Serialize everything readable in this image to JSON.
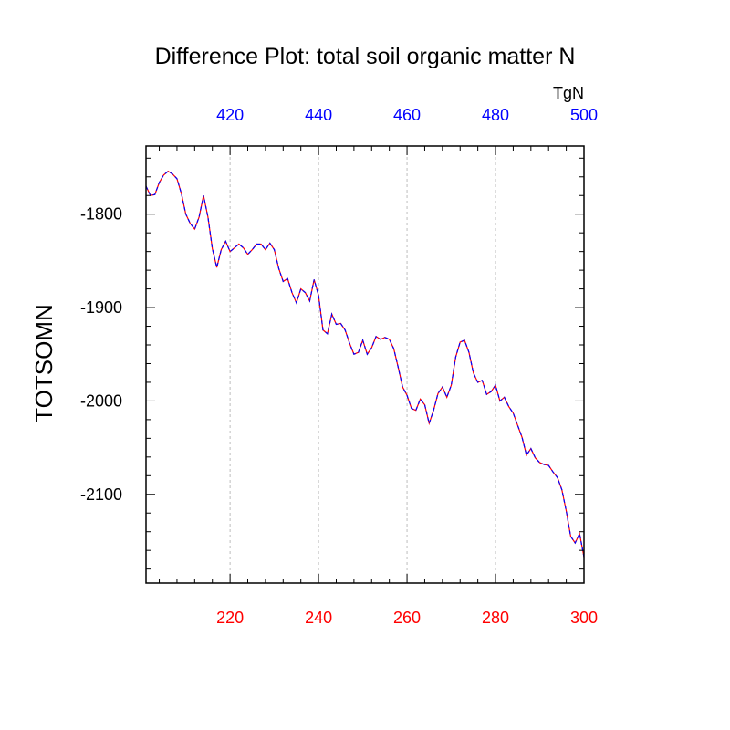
{
  "chart_data": {
    "type": "line",
    "title": "Difference Plot: total soil organic matter N",
    "ylabel": "TOTSOMN",
    "xlabel": "",
    "top_axis_unit": "TgN",
    "bottom_axis": {
      "range": [
        201,
        300
      ],
      "ticks": [
        220,
        240,
        260,
        280,
        300
      ],
      "color": "#ff0000"
    },
    "top_axis": {
      "range": [
        401,
        500
      ],
      "ticks": [
        420,
        440,
        460,
        480,
        500
      ],
      "color": "#0000ff"
    },
    "ylim": [
      -2195,
      -1727
    ],
    "yticks": [
      -1800,
      -1900,
      -2000,
      -2100
    ],
    "grid": "vertical dashed",
    "series": [
      {
        "color": "#ff0000",
        "style": "solid",
        "x": [
          201,
          202,
          203,
          204,
          205,
          206,
          207,
          208,
          209,
          210,
          211,
          212,
          213,
          214,
          215,
          216,
          217,
          218,
          219,
          220,
          221,
          222,
          223,
          224,
          225,
          226,
          227,
          228,
          229,
          230,
          231,
          232,
          233,
          234,
          235,
          236,
          237,
          238,
          239,
          240,
          241,
          242,
          243,
          244,
          245,
          246,
          247,
          248,
          249,
          250,
          251,
          252,
          253,
          254,
          255,
          256,
          257,
          258,
          259,
          260,
          261,
          262,
          263,
          264,
          265,
          266,
          267,
          268,
          269,
          270,
          271,
          272,
          273,
          274,
          275,
          276,
          277,
          278,
          279,
          280,
          281,
          282,
          283,
          284,
          285,
          286,
          287,
          288,
          289,
          290,
          291,
          292,
          293,
          294,
          295,
          296,
          297,
          298,
          299,
          300
        ],
        "values": [
          -1770,
          -1780,
          -1779,
          -1766,
          -1758,
          -1754,
          -1757,
          -1762,
          -1778,
          -1800,
          -1810,
          -1816,
          -1803,
          -1780,
          -1803,
          -1837,
          -1857,
          -1838,
          -1829,
          -1840,
          -1836,
          -1832,
          -1836,
          -1843,
          -1838,
          -1832,
          -1832,
          -1838,
          -1831,
          -1838,
          -1858,
          -1872,
          -1869,
          -1884,
          -1895,
          -1880,
          -1884,
          -1893,
          -1870,
          -1887,
          -1924,
          -1928,
          -1907,
          -1918,
          -1917,
          -1924,
          -1938,
          -1950,
          -1948,
          -1935,
          -1950,
          -1943,
          -1931,
          -1934,
          -1932,
          -1934,
          -1944,
          -1964,
          -1985,
          -1994,
          -2008,
          -2010,
          -1998,
          -2004,
          -2024,
          -2010,
          -1992,
          -1985,
          -1996,
          -1983,
          -1953,
          -1937,
          -1935,
          -1948,
          -1970,
          -1980,
          -1978,
          -1993,
          -1990,
          -1983,
          -2000,
          -1996,
          -2006,
          -2013,
          -2026,
          -2039,
          -2058,
          -2051,
          -2061,
          -2066,
          -2068,
          -2069,
          -2076,
          -2082,
          -2095,
          -2118,
          -2145,
          -2152,
          -2142,
          -2167
        ]
      },
      {
        "color": "#0000ff",
        "style": "dashed",
        "x": [
          201,
          202,
          203,
          204,
          205,
          206,
          207,
          208,
          209,
          210,
          211,
          212,
          213,
          214,
          215,
          216,
          217,
          218,
          219,
          220,
          221,
          222,
          223,
          224,
          225,
          226,
          227,
          228,
          229,
          230,
          231,
          232,
          233,
          234,
          235,
          236,
          237,
          238,
          239,
          240,
          241,
          242,
          243,
          244,
          245,
          246,
          247,
          248,
          249,
          250,
          251,
          252,
          253,
          254,
          255,
          256,
          257,
          258,
          259,
          260,
          261,
          262,
          263,
          264,
          265,
          266,
          267,
          268,
          269,
          270,
          271,
          272,
          273,
          274,
          275,
          276,
          277,
          278,
          279,
          280,
          281,
          282,
          283,
          284,
          285,
          286,
          287,
          288,
          289,
          290,
          291,
          292,
          293,
          294,
          295,
          296,
          297,
          298,
          299,
          300
        ],
        "values": [
          -1770,
          -1780,
          -1779,
          -1766,
          -1758,
          -1754,
          -1757,
          -1762,
          -1778,
          -1800,
          -1810,
          -1816,
          -1803,
          -1780,
          -1803,
          -1837,
          -1857,
          -1838,
          -1829,
          -1840,
          -1836,
          -1832,
          -1836,
          -1843,
          -1838,
          -1832,
          -1832,
          -1838,
          -1831,
          -1838,
          -1858,
          -1872,
          -1869,
          -1884,
          -1895,
          -1880,
          -1884,
          -1893,
          -1870,
          -1887,
          -1924,
          -1928,
          -1907,
          -1918,
          -1917,
          -1924,
          -1938,
          -1950,
          -1948,
          -1935,
          -1950,
          -1943,
          -1931,
          -1934,
          -1932,
          -1934,
          -1944,
          -1964,
          -1985,
          -1994,
          -2008,
          -2010,
          -1998,
          -2004,
          -2024,
          -2010,
          -1992,
          -1985,
          -1996,
          -1983,
          -1953,
          -1937,
          -1935,
          -1948,
          -1970,
          -1980,
          -1978,
          -1993,
          -1990,
          -1983,
          -2000,
          -1996,
          -2006,
          -2013,
          -2026,
          -2039,
          -2058,
          -2051,
          -2061,
          -2066,
          -2068,
          -2069,
          -2076,
          -2082,
          -2095,
          -2118,
          -2145,
          -2152,
          -2142,
          -2167
        ]
      }
    ]
  }
}
